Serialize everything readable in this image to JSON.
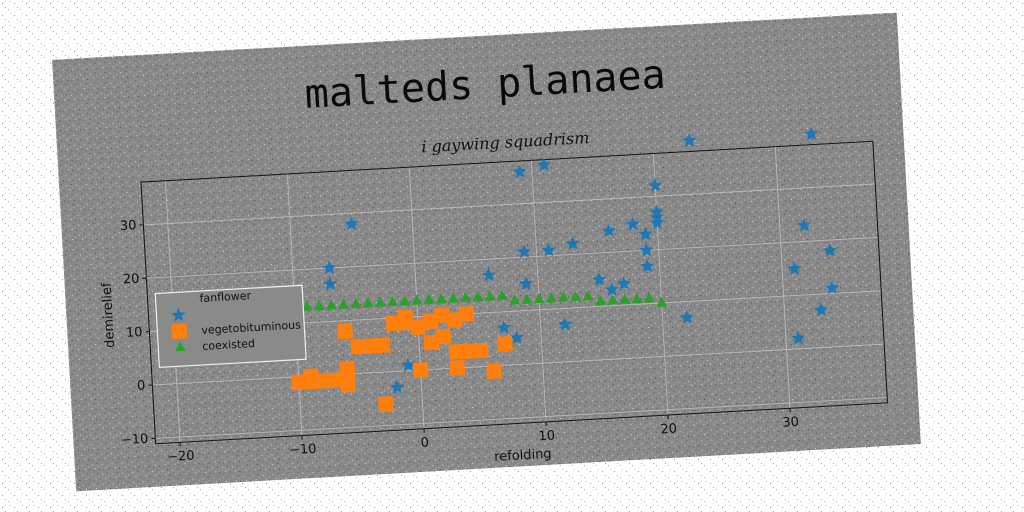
{
  "chart_data": {
    "type": "scatter",
    "title": "malteds planaea",
    "subtitle": "i gaywing squadrism",
    "xlabel": "refolding",
    "ylabel": "demirelief",
    "xlim": [
      -22,
      38
    ],
    "ylim": [
      -11,
      38
    ],
    "xticks": [
      "−20",
      "−10",
      "0",
      "10",
      "20",
      "30"
    ],
    "xtick_values": [
      -20,
      -10,
      0,
      10,
      20,
      30
    ],
    "yticks": [
      "−10",
      "0",
      "10",
      "20",
      "30"
    ],
    "ytick_values": [
      -10,
      0,
      10,
      20,
      30
    ],
    "grid": true,
    "legend_position": "center-left",
    "series": [
      {
        "name": "fanflower",
        "marker": "none",
        "color": "#1f77b4",
        "points": []
      },
      {
        "name": "",
        "marker": "star",
        "color": "#1f77b4",
        "points": [
          [
            -7,
            17
          ],
          [
            -7,
            20
          ],
          [
            -5,
            28
          ],
          [
            -2,
            -3
          ],
          [
            -1,
            1
          ],
          [
            6,
            17
          ],
          [
            7,
            7
          ],
          [
            8,
            5
          ],
          [
            9,
            36
          ],
          [
            9,
            21
          ],
          [
            9,
            15
          ],
          [
            11,
            37
          ],
          [
            11,
            21
          ],
          [
            12,
            7
          ],
          [
            13,
            22
          ],
          [
            15,
            15
          ],
          [
            16,
            24
          ],
          [
            16,
            13
          ],
          [
            17,
            14
          ],
          [
            18,
            25
          ],
          [
            19,
            23
          ],
          [
            19,
            20
          ],
          [
            19,
            17
          ],
          [
            20,
            27
          ],
          [
            20,
            26
          ],
          [
            20,
            32
          ],
          [
            20,
            25
          ],
          [
            22,
            7
          ],
          [
            23,
            40
          ],
          [
            31,
            2
          ],
          [
            31,
            15
          ],
          [
            32,
            23
          ],
          [
            33,
            7
          ],
          [
            34,
            18
          ],
          [
            34,
            11
          ],
          [
            33,
            40
          ]
        ]
      },
      {
        "name": "vegetobituminous",
        "marker": "square",
        "color": "#ff7f0e",
        "points": [
          [
            -10,
            -1
          ],
          [
            -9,
            -1
          ],
          [
            -9,
            0
          ],
          [
            -8,
            -1
          ],
          [
            -7,
            -1
          ],
          [
            -6,
            -2
          ],
          [
            -6,
            0
          ],
          [
            -6,
            1
          ],
          [
            -6,
            8
          ],
          [
            -5,
            5
          ],
          [
            -4,
            5
          ],
          [
            -3,
            5
          ],
          [
            -3,
            -6
          ],
          [
            -2,
            9
          ],
          [
            -1,
            10
          ],
          [
            -1,
            9
          ],
          [
            0,
            0
          ],
          [
            0,
            8
          ],
          [
            1,
            5
          ],
          [
            1,
            9
          ],
          [
            2,
            6
          ],
          [
            2,
            10
          ],
          [
            3,
            3
          ],
          [
            3,
            9
          ],
          [
            3,
            0
          ],
          [
            4,
            10
          ],
          [
            4,
            3
          ],
          [
            5,
            3
          ],
          [
            6,
            -1
          ],
          [
            7,
            4
          ]
        ]
      },
      {
        "name": "coexisted",
        "marker": "triangle",
        "color": "#2ca02c",
        "points": [
          [
            -10,
            13
          ],
          [
            -9,
            13
          ],
          [
            -8,
            13
          ],
          [
            -7,
            13
          ],
          [
            -6,
            13
          ],
          [
            -5,
            13
          ],
          [
            -4,
            13
          ],
          [
            -3,
            13
          ],
          [
            -2,
            13
          ],
          [
            -1,
            13
          ],
          [
            0,
            13
          ],
          [
            1,
            13
          ],
          [
            2,
            13
          ],
          [
            3,
            13
          ],
          [
            4,
            13
          ],
          [
            5,
            13
          ],
          [
            6,
            13
          ],
          [
            7,
            13
          ],
          [
            8,
            12
          ],
          [
            9,
            12
          ],
          [
            10,
            12
          ],
          [
            11,
            12
          ],
          [
            12,
            12
          ],
          [
            13,
            12
          ],
          [
            14,
            12
          ],
          [
            15,
            11
          ],
          [
            16,
            11
          ],
          [
            17,
            11
          ],
          [
            18,
            11
          ],
          [
            19,
            11
          ],
          [
            20,
            10
          ]
        ]
      }
    ]
  }
}
